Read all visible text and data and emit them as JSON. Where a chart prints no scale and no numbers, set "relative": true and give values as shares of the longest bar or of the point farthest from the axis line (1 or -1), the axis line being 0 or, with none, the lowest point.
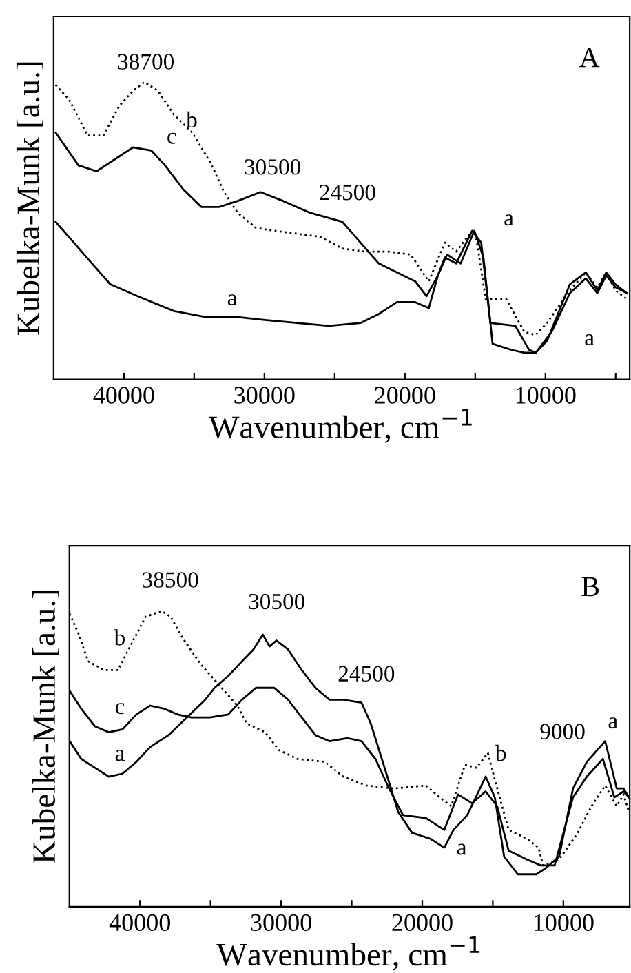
{
  "chart_data": [
    {
      "type": "line",
      "title": "A",
      "xlabel": "Wavenumber, cm$^{−1}$",
      "ylabel": "Kubelka-Munk [a.u.]",
      "relative": true,
      "tick_labels": "x",
      "xlim": [
        45000,
        4000
      ],
      "xticks": [
        40000,
        {
          "value": 35000,
          "label": null
        },
        30000,
        {
          "value": 25000,
          "label": null
        },
        20000,
        {
          "value": 15000,
          "label": null
        },
        10000,
        {
          "value": 5000,
          "label": null
        }
      ],
      "series": [
        {
          "color": "#000000",
          "line_style": "dotted",
          "x": [
            44860,
            43890,
            42590,
            41460,
            40320,
            39350,
            38540,
            37570,
            36440,
            35140,
            33850,
            32870,
            31900,
            30610,
            29310,
            27690,
            26070,
            24450,
            22830,
            21210,
            19590,
            18300,
            17160,
            16350,
            15380,
            14900,
            14250,
            12790,
            11500,
            10690,
            9880,
            8260,
            7130,
            6310,
            5670,
            5020,
            4210
          ],
          "values": [
            0.99,
            0.94,
            0.82,
            0.82,
            0.92,
            0.97,
            1.0,
            0.97,
            0.89,
            0.83,
            0.73,
            0.63,
            0.56,
            0.51,
            0.5,
            0.49,
            0.48,
            0.44,
            0.43,
            0.43,
            0.42,
            0.33,
            0.46,
            0.43,
            0.49,
            0.47,
            0.27,
            0.27,
            0.16,
            0.15,
            0.19,
            0.3,
            0.36,
            0.31,
            0.36,
            0.3,
            0.27
          ]
        },
        {
          "color": "#000000",
          "line_style": "solid",
          "x": [
            44860,
            43240,
            41940,
            40650,
            39350,
            38060,
            37080,
            35790,
            34490,
            33200,
            31900,
            30280,
            28670,
            26720,
            24450,
            23160,
            21860,
            20570,
            19270,
            18460,
            17650,
            17160,
            16350,
            15220,
            14570,
            13920,
            12140,
            11170,
            10690,
            9880,
            8260,
            7130,
            6310,
            5670,
            5020,
            4210
          ],
          "values": [
            0.83,
            0.72,
            0.7,
            0.74,
            0.78,
            0.77,
            0.72,
            0.64,
            0.58,
            0.58,
            0.6,
            0.63,
            0.6,
            0.56,
            0.53,
            0.46,
            0.39,
            0.36,
            0.33,
            0.28,
            0.35,
            0.41,
            0.39,
            0.5,
            0.46,
            0.19,
            0.18,
            0.1,
            0.09,
            0.13,
            0.32,
            0.36,
            0.3,
            0.36,
            0.32,
            0.29
          ]
        },
        {
          "color": "#000000",
          "line_style": "solid",
          "x": [
            44860,
            43560,
            42270,
            40970,
            39030,
            36440,
            34170,
            31900,
            29960,
            27690,
            25420,
            23160,
            21860,
            20570,
            19270,
            18300,
            17650,
            17000,
            16030,
            15060,
            14410,
            13760,
            12470,
            11500,
            10690,
            9560,
            8260,
            7130,
            6310,
            5670,
            5020,
            4210
          ],
          "values": [
            0.53,
            0.46,
            0.39,
            0.32,
            0.28,
            0.23,
            0.21,
            0.21,
            0.2,
            0.19,
            0.18,
            0.19,
            0.22,
            0.26,
            0.26,
            0.24,
            0.35,
            0.42,
            0.39,
            0.5,
            0.41,
            0.12,
            0.1,
            0.09,
            0.09,
            0.16,
            0.29,
            0.34,
            0.29,
            0.35,
            0.31,
            0.29
          ]
        }
      ],
      "annotations": [
        "38700",
        "30500",
        "24500",
        "b",
        "c",
        "a",
        "a",
        "a"
      ]
    },
    {
      "type": "line",
      "title": "B",
      "xlabel": "Wavenumber, cm$^{−1}$",
      "ylabel": "Kubelka-Munk [a.u.]",
      "relative": true,
      "tick_labels": "x",
      "xlim": [
        45000,
        5300
      ],
      "xticks": [
        40000,
        {
          "value": 35000,
          "label": null
        },
        30000,
        {
          "value": 25000,
          "label": null
        },
        20000,
        {
          "value": 15000,
          "label": null
        },
        10000
      ],
      "series": [
        {
          "color": "#000000",
          "line_style": "dotted",
          "x": [
            44980,
            44330,
            43680,
            42540,
            41560,
            40590,
            39610,
            38470,
            37820,
            37000,
            35700,
            34400,
            33100,
            32440,
            31140,
            30160,
            28860,
            26910,
            25600,
            23980,
            22020,
            19740,
            18760,
            17950,
            16970,
            16160,
            15350,
            14860,
            13880,
            12580,
            11760,
            11440,
            10300,
            8990,
            8010,
            7040,
            6220,
            5740,
            5350
          ],
          "values": [
            0.99,
            0.92,
            0.83,
            0.8,
            0.8,
            0.89,
            0.98,
            1.0,
            0.98,
            0.91,
            0.82,
            0.75,
            0.68,
            0.62,
            0.59,
            0.53,
            0.5,
            0.49,
            0.44,
            0.41,
            0.4,
            0.41,
            0.37,
            0.34,
            0.48,
            0.47,
            0.52,
            0.43,
            0.26,
            0.23,
            0.2,
            0.14,
            0.16,
            0.25,
            0.34,
            0.41,
            0.34,
            0.38,
            0.32
          ]
        },
        {
          "color": "#000000",
          "line_style": "solid",
          "x": [
            44980,
            44170,
            43190,
            42210,
            41240,
            40260,
            39280,
            37980,
            36680,
            35380,
            34720,
            33750,
            32770,
            31960,
            31300,
            30820,
            30330,
            29510,
            28540,
            27560,
            26580,
            25600,
            24300,
            23650,
            22670,
            21700,
            20720,
            19420,
            18440,
            17790,
            16810,
            15510,
            14860,
            14200,
            13230,
            11920,
            11270,
            10300,
            9320,
            8340,
            7040,
            6220,
            5740,
            5350
          ],
          "values": [
            0.56,
            0.5,
            0.47,
            0.44,
            0.45,
            0.49,
            0.54,
            0.58,
            0.64,
            0.7,
            0.74,
            0.78,
            0.83,
            0.87,
            0.92,
            0.88,
            0.9,
            0.87,
            0.8,
            0.74,
            0.7,
            0.7,
            0.69,
            0.62,
            0.47,
            0.32,
            0.25,
            0.23,
            0.2,
            0.26,
            0.31,
            0.44,
            0.37,
            0.17,
            0.11,
            0.11,
            0.13,
            0.17,
            0.4,
            0.49,
            0.56,
            0.4,
            0.4,
            0.37
          ]
        },
        {
          "color": "#000000",
          "line_style": "solid",
          "x": [
            44980,
            44170,
            43190,
            42210,
            41240,
            40260,
            39280,
            38310,
            37330,
            36350,
            35050,
            33750,
            32770,
            31790,
            30490,
            29510,
            28540,
            27560,
            26580,
            25280,
            24300,
            23320,
            22350,
            21370,
            19740,
            18440,
            17460,
            16480,
            15510,
            14690,
            13880,
            12580,
            11600,
            10620,
            9320,
            8340,
            7200,
            6390,
            5740,
            5350
          ],
          "values": [
            0.73,
            0.67,
            0.61,
            0.59,
            0.6,
            0.65,
            0.68,
            0.67,
            0.65,
            0.64,
            0.64,
            0.65,
            0.7,
            0.74,
            0.74,
            0.7,
            0.64,
            0.58,
            0.56,
            0.57,
            0.56,
            0.5,
            0.4,
            0.31,
            0.3,
            0.26,
            0.38,
            0.35,
            0.39,
            0.34,
            0.19,
            0.16,
            0.14,
            0.14,
            0.37,
            0.44,
            0.5,
            0.37,
            0.39,
            0.37
          ]
        }
      ],
      "annotations": [
        "38500",
        "30500",
        "24500",
        "9000",
        "b",
        "c",
        "a",
        "a",
        "b",
        "a"
      ]
    }
  ]
}
